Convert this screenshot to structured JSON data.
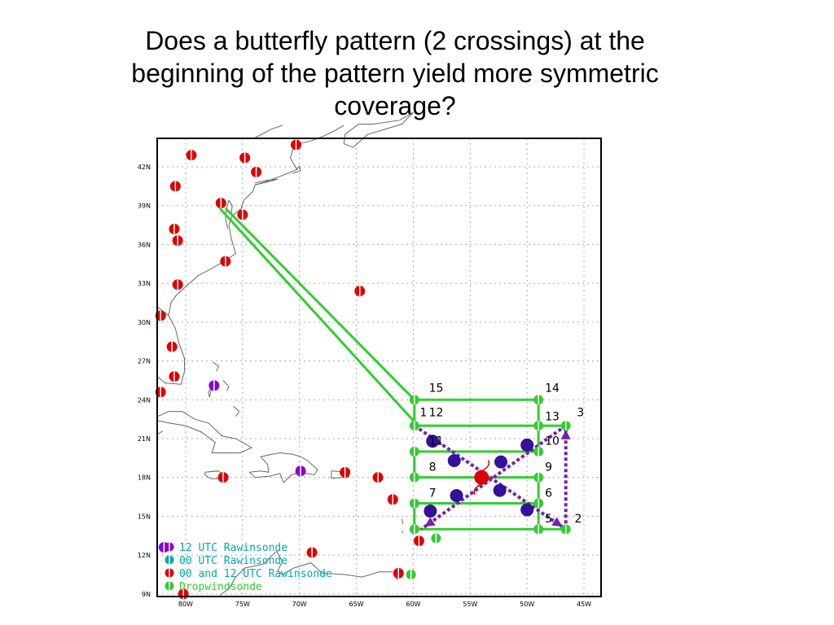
{
  "title": {
    "line1": "Does a butterfly pattern (2 crossings) at the",
    "line2": "beginning of the pattern yield more symmetric",
    "line3": "coverage?"
  },
  "map": {
    "lat_labels": [
      "42N",
      "39N",
      "36N",
      "33N",
      "30N",
      "27N",
      "24N",
      "21N",
      "18N",
      "15N",
      "12N",
      "9N"
    ],
    "lon_labels": [
      "80W",
      "75W",
      "70W",
      "65W",
      "60W",
      "55W",
      "50W",
      "45W"
    ],
    "lat_values": [
      42,
      39,
      36,
      33,
      30,
      27,
      24,
      21,
      18,
      15,
      12,
      9
    ],
    "lon_values": [
      -80,
      -75,
      -70,
      -65,
      -60,
      -55,
      -50,
      -45
    ],
    "lon_range": [
      -82.5,
      -43.5
    ],
    "lat_range": [
      8.8,
      44.2
    ],
    "colors": {
      "raob_both": "#dd0000",
      "raob_12": "#8800cc",
      "raob_00": "#00aaaa",
      "dropsonde": "#33cc33",
      "butterfly_line": "#7722aa",
      "butterfly_points": "#331199",
      "storm": "#dd0000"
    },
    "waypoint_labels": [
      {
        "text": "15",
        "lon": -59.2,
        "lat": 24.3
      },
      {
        "text": "14",
        "lon": -49.0,
        "lat": 24.3
      },
      {
        "text": "1",
        "lon": -60.0,
        "lat": 22.4
      },
      {
        "text": "12",
        "lon": -59.2,
        "lat": 22.4
      },
      {
        "text": "13",
        "lon": -49.0,
        "lat": 22.1
      },
      {
        "text": "3",
        "lon": -46.2,
        "lat": 22.4
      },
      {
        "text": "11",
        "lon": -59.2,
        "lat": 20.2
      },
      {
        "text": "10",
        "lon": -49.0,
        "lat": 20.2
      },
      {
        "text": "8",
        "lon": -59.2,
        "lat": 18.2
      },
      {
        "text": "9",
        "lon": -49.0,
        "lat": 18.2
      },
      {
        "text": "7",
        "lon": -59.2,
        "lat": 16.2
      },
      {
        "text": "6",
        "lon": -49.0,
        "lat": 16.2
      },
      {
        "text": "5",
        "lon": -49.0,
        "lat": 14.2
      },
      {
        "text": "2",
        "lon": -46.4,
        "lat": 14.2
      }
    ],
    "legend": [
      {
        "text": "12 UTC Rawinsonde",
        "color_key": "raob_12"
      },
      {
        "text": "00 UTC Rawinsonde",
        "color_key": "raob_00"
      },
      {
        "text": "00 and 12 UTC Rawinsonde",
        "color_key": "raob_00"
      },
      {
        "text": "Dropwindsonde",
        "color_key": "dropsonde"
      }
    ]
  }
}
